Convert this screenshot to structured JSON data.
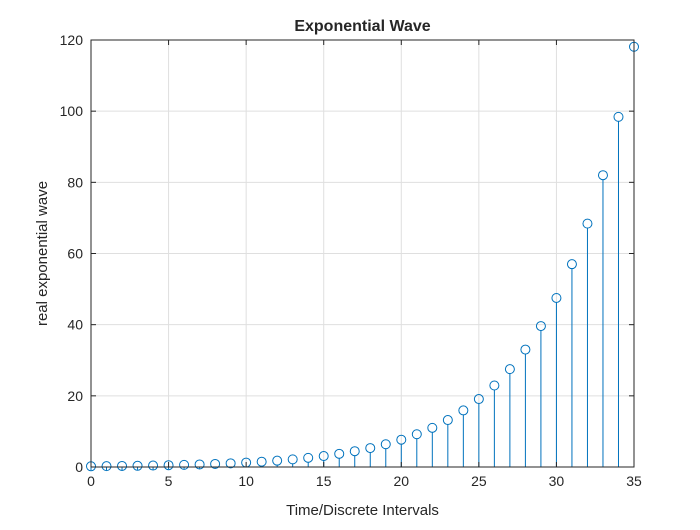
{
  "chart_data": {
    "type": "stem",
    "title": "Exponential Wave",
    "xlabel": "Time/Discrete Intervals",
    "ylabel": "real exponential wave",
    "xlim": [
      0,
      35
    ],
    "ylim": [
      0,
      120
    ],
    "xticks": [
      0,
      5,
      10,
      15,
      20,
      25,
      30,
      35
    ],
    "yticks": [
      0,
      20,
      40,
      60,
      80,
      100,
      120
    ],
    "grid": true,
    "x": [
      0,
      1,
      2,
      3,
      4,
      5,
      6,
      7,
      8,
      9,
      10,
      11,
      12,
      13,
      14,
      15,
      16,
      17,
      18,
      19,
      20,
      21,
      22,
      23,
      24,
      25,
      26,
      27,
      28,
      29,
      30,
      31,
      32,
      33,
      34,
      35
    ],
    "values": [
      0.2,
      0.24,
      0.29,
      0.34,
      0.41,
      0.5,
      0.6,
      0.72,
      0.86,
      1.03,
      1.24,
      1.49,
      1.78,
      2.14,
      2.57,
      3.08,
      3.7,
      4.44,
      5.32,
      6.39,
      7.67,
      9.2,
      11.0,
      13.2,
      15.9,
      19.1,
      22.9,
      27.5,
      33.0,
      39.6,
      47.5,
      57.0,
      68.4,
      82.0,
      98.4,
      118.1
    ],
    "series_color": "#0072BD"
  }
}
